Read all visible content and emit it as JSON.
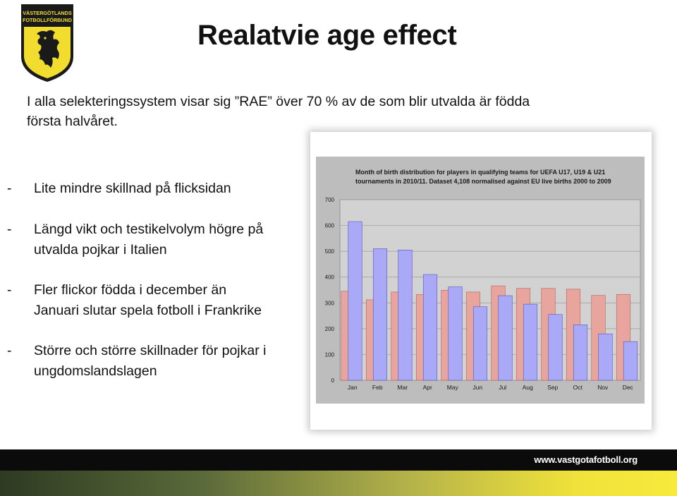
{
  "logo": {
    "text_line1": "VÄSTERGÖTLANDS",
    "text_line2": "FOTBOLLFÖRBUND"
  },
  "slide": {
    "title": "Realatvie age effect",
    "intro_line1": "I alla selekteringssystem visar sig ”RAE” över 70 % av de som blir utvalda är födda",
    "intro_line2": "första halvåret.",
    "bullets": [
      {
        "dash": "-",
        "line1": "Lite mindre skillnad på flicksidan",
        "line2": ""
      },
      {
        "dash": "-",
        "line1": "Längd vikt och testikelvolym högre på",
        "line2": "utvalda pojkar i Italien"
      },
      {
        "dash": "-",
        "line1": "Fler flickor födda i december än",
        "line2": "Januari slutar spela fotboll i Frankrike"
      },
      {
        "dash": "-",
        "line1": "Större och större skillnader för pojkar i",
        "line2": "ungdomslandslagen"
      }
    ]
  },
  "footer": {
    "url": "www.vastgotafotboll.org"
  },
  "colors": {
    "series_eu_births": "#e8a59d",
    "series_players": "#a9a9f7",
    "plot_background": "#bdbdbd",
    "accent_yellow": "#f4e43a"
  },
  "chart_data": {
    "type": "bar",
    "title": "Month of birth distribution for players in qualifying teams for UEFA U17, U19 & U21 tournaments in 2010/11. Dataset 4,108 normalised against EU live births 2000 to 2009",
    "categories": [
      "Jan",
      "Feb",
      "Mar",
      "Apr",
      "May",
      "Jun",
      "Jul",
      "Aug",
      "Sep",
      "Oct",
      "Nov",
      "Dec"
    ],
    "series": [
      {
        "values": [
          345,
          312,
          342,
          332,
          349,
          342,
          366,
          356,
          356,
          353,
          329,
          333
        ]
      },
      {
        "values": [
          615,
          510,
          505,
          410,
          362,
          285,
          328,
          295,
          255,
          215,
          180,
          150
        ]
      }
    ],
    "ylim": [
      0,
      700
    ],
    "yticks": [
      0,
      100,
      200,
      300,
      400,
      500,
      600,
      700
    ],
    "grid": true,
    "xlabel": "",
    "ylabel": ""
  }
}
